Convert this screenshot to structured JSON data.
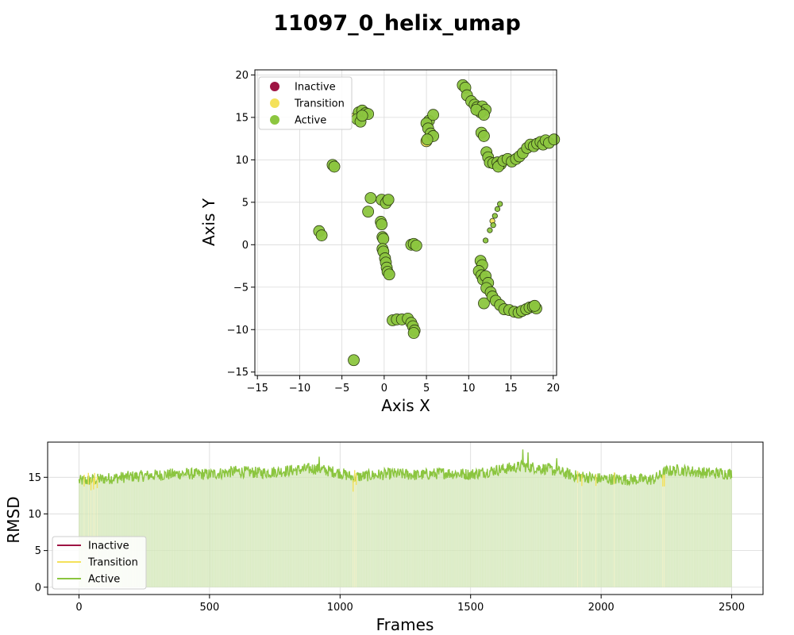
{
  "title": "11097_0_helix_umap",
  "colors": {
    "inactive": "#9e1443",
    "transition": "#f4e15a",
    "active": "#8cc63f",
    "active_line": "#8bc53f",
    "active_fill": "#d4e8b8",
    "transition_fill": "#f4f0c0"
  },
  "chart_data": [
    {
      "type": "scatter",
      "title": "",
      "xlabel": "Axis X",
      "ylabel": "Axis Y",
      "xlim": [
        -15.3,
        20.4
      ],
      "ylim": [
        -15.4,
        20.6
      ],
      "xticks": [
        -15,
        -10,
        -5,
        0,
        5,
        10,
        15,
        20
      ],
      "yticks": [
        -15,
        -10,
        -5,
        0,
        5,
        10,
        15,
        20
      ],
      "grid": true,
      "legend": {
        "placement": "upper-left",
        "entries": [
          "Inactive",
          "Transition",
          "Active"
        ]
      },
      "series": [
        {
          "name": "Inactive",
          "points": []
        },
        {
          "name": "Transition",
          "points": [
            [
              5.0,
              12.2
            ],
            [
              12.8,
              2.8
            ],
            [
              -3.2,
              15.1
            ]
          ]
        },
        {
          "name": "Active",
          "points": [
            [
              -3.0,
              15.6
            ],
            [
              -2.6,
              15.8
            ],
            [
              -2.2,
              15.5
            ],
            [
              -1.9,
              15.4
            ],
            [
              -3.2,
              14.8
            ],
            [
              -2.8,
              14.5
            ],
            [
              -2.6,
              15.2
            ],
            [
              -6.1,
              9.4
            ],
            [
              -5.9,
              9.2
            ],
            [
              -7.7,
              1.6
            ],
            [
              -7.4,
              1.1
            ],
            [
              -1.6,
              5.5
            ],
            [
              -1.9,
              3.9
            ],
            [
              -0.3,
              5.3
            ],
            [
              0.4,
              5.2
            ],
            [
              0.2,
              4.9
            ],
            [
              0.5,
              5.3
            ],
            [
              -0.4,
              2.7
            ],
            [
              -0.3,
              2.4
            ],
            [
              -0.2,
              0.9
            ],
            [
              -0.1,
              0.7
            ],
            [
              -0.2,
              -0.5
            ],
            [
              -0.1,
              -0.8
            ],
            [
              0.1,
              -1.6
            ],
            [
              0.2,
              -2.1
            ],
            [
              0.3,
              -2.7
            ],
            [
              0.4,
              -3.2
            ],
            [
              0.6,
              -3.5
            ],
            [
              3.2,
              0.0
            ],
            [
              3.5,
              0.1
            ],
            [
              3.8,
              -0.1
            ],
            [
              1.0,
              -8.9
            ],
            [
              1.5,
              -8.8
            ],
            [
              2.1,
              -8.8
            ],
            [
              2.8,
              -8.7
            ],
            [
              3.2,
              -9.2
            ],
            [
              3.4,
              -9.6
            ],
            [
              3.6,
              -10.1
            ],
            [
              3.5,
              -10.4
            ],
            [
              -3.6,
              -13.6
            ],
            [
              5.3,
              14.6
            ],
            [
              5.0,
              14.3
            ],
            [
              5.8,
              15.3
            ],
            [
              5.2,
              13.7
            ],
            [
              5.5,
              13.1
            ],
            [
              5.8,
              12.8
            ],
            [
              5.1,
              12.4
            ],
            [
              9.3,
              18.8
            ],
            [
              9.6,
              18.5
            ],
            [
              9.8,
              17.6
            ],
            [
              10.3,
              16.9
            ],
            [
              10.7,
              16.5
            ],
            [
              11.0,
              16.2
            ],
            [
              11.6,
              16.3
            ],
            [
              12.0,
              15.9
            ],
            [
              11.4,
              15.6
            ],
            [
              10.9,
              15.9
            ],
            [
              11.8,
              15.3
            ],
            [
              11.5,
              13.2
            ],
            [
              11.8,
              12.8
            ],
            [
              12.1,
              10.9
            ],
            [
              12.3,
              10.3
            ],
            [
              12.5,
              9.7
            ],
            [
              12.9,
              9.6
            ],
            [
              13.4,
              9.7
            ],
            [
              13.8,
              9.5
            ],
            [
              13.5,
              9.2
            ],
            [
              14.1,
              9.9
            ],
            [
              14.6,
              10.1
            ],
            [
              15.1,
              9.8
            ],
            [
              15.6,
              10.1
            ],
            [
              16.0,
              10.4
            ],
            [
              16.4,
              10.8
            ],
            [
              16.9,
              11.4
            ],
            [
              17.3,
              11.8
            ],
            [
              17.7,
              11.6
            ],
            [
              18.1,
              11.9
            ],
            [
              18.5,
              12.1
            ],
            [
              18.8,
              11.8
            ],
            [
              19.1,
              12.3
            ],
            [
              19.5,
              12.0
            ],
            [
              20.1,
              12.4
            ],
            [
              13.7,
              4.8
            ],
            [
              13.4,
              4.2
            ],
            [
              13.1,
              3.4
            ],
            [
              12.9,
              2.3
            ],
            [
              12.5,
              1.7
            ],
            [
              12.0,
              0.5
            ],
            [
              11.4,
              -1.9
            ],
            [
              11.6,
              -2.4
            ],
            [
              11.2,
              -3.1
            ],
            [
              11.5,
              -3.6
            ],
            [
              11.7,
              -4.1
            ],
            [
              12.0,
              -3.7
            ],
            [
              12.3,
              -4.5
            ],
            [
              12.1,
              -5.1
            ],
            [
              12.6,
              -5.6
            ],
            [
              11.8,
              -6.9
            ],
            [
              12.8,
              -6.1
            ],
            [
              13.2,
              -6.6
            ],
            [
              13.7,
              -7.1
            ],
            [
              14.2,
              -7.6
            ],
            [
              14.8,
              -7.7
            ],
            [
              15.4,
              -7.9
            ],
            [
              15.9,
              -8.0
            ],
            [
              16.3,
              -7.8
            ],
            [
              16.8,
              -7.6
            ],
            [
              17.2,
              -7.4
            ],
            [
              17.6,
              -7.3
            ],
            [
              18.0,
              -7.5
            ],
            [
              17.8,
              -7.2
            ]
          ]
        }
      ]
    },
    {
      "type": "line",
      "title": "",
      "xlabel": "Frames",
      "ylabel": "RMSD",
      "xlim": [
        -120,
        2620
      ],
      "ylim": [
        -1.0,
        19.8
      ],
      "xticks": [
        0,
        500,
        1000,
        1500,
        2000,
        2500
      ],
      "yticks": [
        0,
        5,
        10,
        15
      ],
      "grid": true,
      "legend": {
        "placement": "lower-left",
        "entries": [
          "Inactive",
          "Transition",
          "Active"
        ]
      },
      "frame_range": [
        0,
        2500
      ],
      "rmsd_profile": {
        "frames": [
          0,
          100,
          200,
          300,
          400,
          500,
          600,
          700,
          800,
          900,
          1000,
          1050,
          1100,
          1200,
          1300,
          1400,
          1500,
          1600,
          1700,
          1800,
          1900,
          2000,
          2100,
          2200,
          2250,
          2300,
          2400,
          2500
        ],
        "rmsd": [
          14.5,
          14.8,
          15.1,
          15.3,
          15.5,
          15.4,
          15.8,
          15.6,
          15.9,
          16.2,
          15.6,
          15.0,
          15.2,
          15.5,
          15.3,
          15.6,
          15.4,
          16.0,
          16.5,
          16.1,
          15.2,
          14.8,
          14.7,
          14.7,
          15.8,
          16.0,
          15.6,
          15.5
        ]
      },
      "rmsd_peaks": [
        [
          920,
          17.8
        ],
        [
          1700,
          18.8
        ],
        [
          1720,
          18.4
        ],
        [
          1830,
          17.6
        ]
      ],
      "transition_frames": [
        20,
        35,
        45,
        55,
        60,
        70,
        1050,
        1055,
        1062,
        1910,
        1925,
        1980,
        2050,
        2235,
        2242
      ],
      "series": [
        {
          "name": "Inactive",
          "values": []
        },
        {
          "name": "Transition"
        },
        {
          "name": "Active"
        }
      ]
    }
  ]
}
